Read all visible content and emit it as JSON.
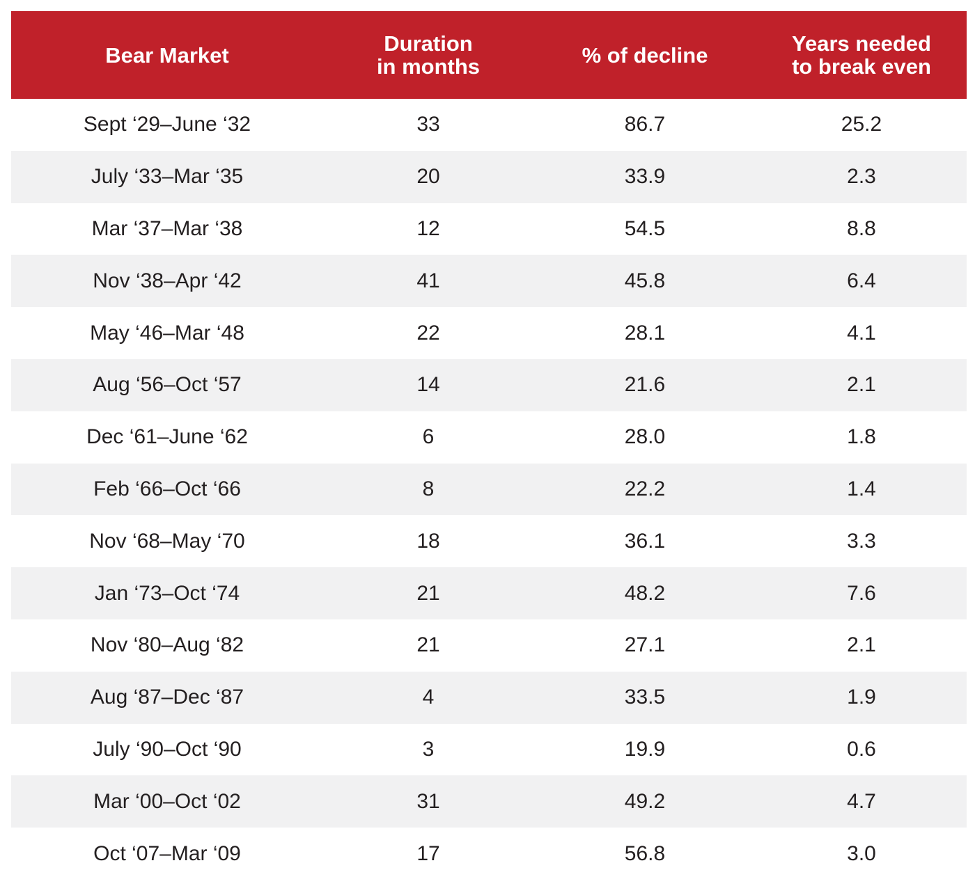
{
  "chart_data": {
    "type": "table",
    "columns": [
      "Bear Market",
      "Duration\nin months",
      "% of decline",
      "Years needed\nto break even"
    ],
    "rows": [
      [
        "Sept ‘29–June ‘32",
        "33",
        "86.7",
        "25.2"
      ],
      [
        "July ‘33–Mar ‘35",
        "20",
        "33.9",
        "2.3"
      ],
      [
        "Mar ‘37–Mar ‘38",
        "12",
        "54.5",
        "8.8"
      ],
      [
        "Nov ‘38–Apr ‘42",
        "41",
        "45.8",
        "6.4"
      ],
      [
        "May ‘46–Mar ‘48",
        "22",
        "28.1",
        "4.1"
      ],
      [
        "Aug ‘56–Oct ‘57",
        "14",
        "21.6",
        "2.1"
      ],
      [
        "Dec ‘61–June ‘62",
        "6",
        "28.0",
        "1.8"
      ],
      [
        "Feb ‘66–Oct ‘66",
        "8",
        "22.2",
        "1.4"
      ],
      [
        "Nov ‘68–May ‘70",
        "18",
        "36.1",
        "3.3"
      ],
      [
        "Jan ‘73–Oct ‘74",
        "21",
        "48.2",
        "7.6"
      ],
      [
        "Nov ‘80–Aug ‘82",
        "21",
        "27.1",
        "2.1"
      ],
      [
        "Aug ‘87–Dec ‘87",
        "4",
        "33.5",
        "1.9"
      ],
      [
        "July ‘90–Oct ‘90",
        "3",
        "19.9",
        "0.6"
      ],
      [
        "Mar ‘00–Oct ‘02",
        "31",
        "49.2",
        "4.7"
      ],
      [
        "Oct ‘07–Mar ‘09",
        "17",
        "56.8",
        "3.0"
      ]
    ],
    "colors": {
      "header_bg": "#c0212a",
      "header_text": "#ffffff",
      "stripe_bg": "#f1f1f2",
      "text": "#231f20"
    }
  }
}
